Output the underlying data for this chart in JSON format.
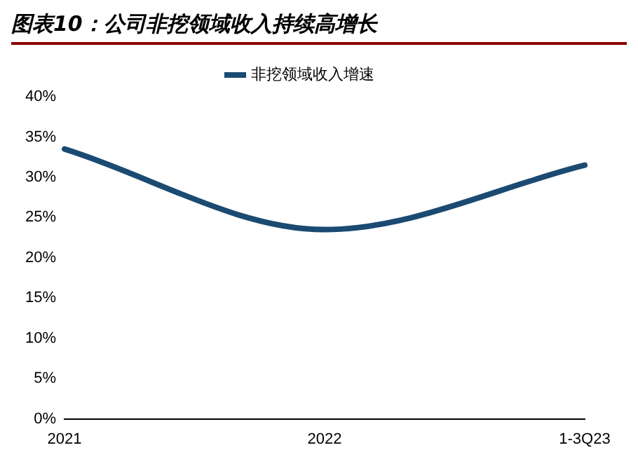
{
  "chart_data": {
    "type": "line",
    "title": "图表10：公司非挖领域收入持续高增长",
    "categories": [
      "2021",
      "2022",
      "1-3Q23"
    ],
    "series": [
      {
        "name": "非挖领域收入增速",
        "color": "#1b4a72",
        "values": [
          33.5,
          23.5,
          31.5
        ]
      }
    ],
    "ylim": [
      0,
      40
    ],
    "yticks": [
      {
        "value": 0,
        "label": "0%"
      },
      {
        "value": 5,
        "label": "5%"
      },
      {
        "value": 10,
        "label": "10%"
      },
      {
        "value": 15,
        "label": "15%"
      },
      {
        "value": 20,
        "label": "20%"
      },
      {
        "value": 25,
        "label": "25%"
      },
      {
        "value": 30,
        "label": "30%"
      },
      {
        "value": 35,
        "label": "35%"
      },
      {
        "value": 40,
        "label": "40%"
      }
    ],
    "grid": false,
    "legend": "top",
    "marker": "none",
    "line_style": "solid"
  }
}
